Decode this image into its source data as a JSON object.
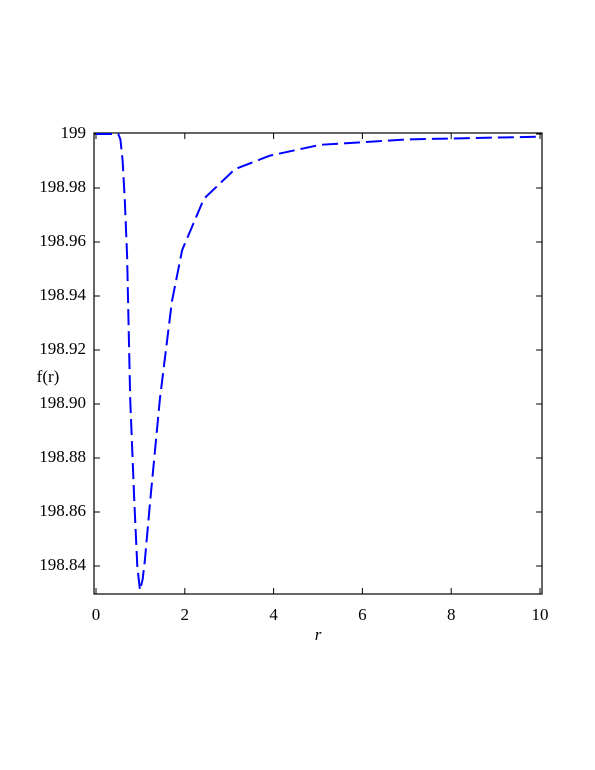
{
  "chart_data": {
    "type": "line",
    "x_label": "r",
    "y_label": "f(r)",
    "x": [
      0,
      0.3,
      0.5,
      0.55,
      0.6,
      0.65,
      0.7,
      0.77,
      0.86,
      0.93,
      0.99,
      1.05,
      1.1,
      1.22,
      1.44,
      1.71,
      1.94,
      2.43,
      3.13,
      3.92,
      5.05,
      7,
      10
    ],
    "series": [
      {
        "color": "#0000ff",
        "values": [
          199,
          199,
          199,
          198.998,
          198.99,
          198.975,
          198.955,
          198.902,
          198.865,
          198.84,
          198.831,
          198.835,
          198.842,
          198.864,
          198.902,
          198.938,
          198.957,
          198.976,
          198.987,
          198.992,
          198.996,
          198.998,
          198.999
        ]
      }
    ],
    "xlim": [
      0,
      10
    ],
    "xticks": [
      0,
      2,
      4,
      6,
      8,
      10
    ],
    "ylim": [
      198.83,
      199
    ],
    "yticks": [
      199,
      198.98,
      198.96,
      198.94,
      198.92,
      {
        "value": 198.9,
        "label": "198.90"
      },
      198.88,
      198.86,
      198.84
    ],
    "line_style": "dashed",
    "grid": false
  }
}
